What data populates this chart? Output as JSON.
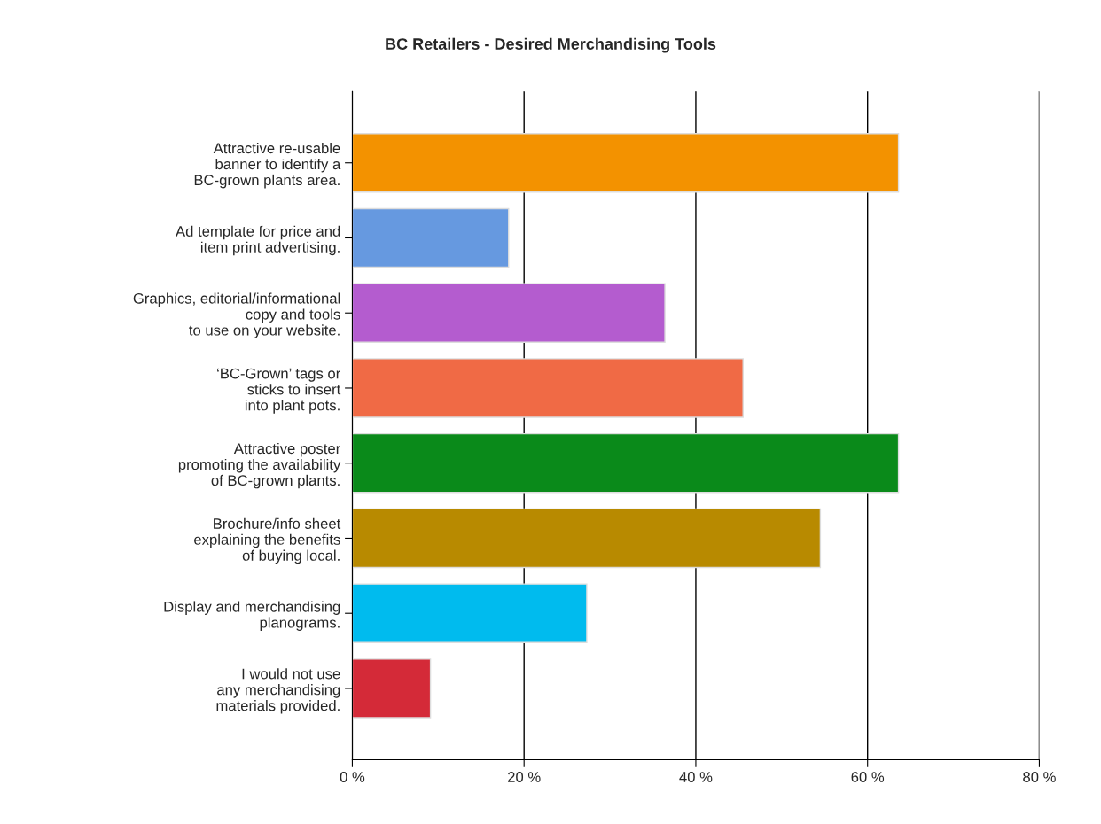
{
  "chart_data": {
    "type": "bar",
    "orientation": "horizontal",
    "title": "BC Retailers - Desired Merchandising Tools",
    "categories": [
      "Attractive re-usable\nbanner to identify a\nBC-grown plants area.",
      "Ad template for price and\nitem print advertising.",
      "Graphics, editorial/informational\ncopy and tools\nto use on your website.",
      "‘BC-Grown’ tags or\nsticks to insert\ninto plant pots.",
      "Attractive poster\npromoting the availability\nof BC-grown plants.",
      "Brochure/info sheet\nexplaining the benefits\nof buying local.",
      "Display and merchandising\nplanograms.",
      "I would not use\nany merchandising\nmaterials provided."
    ],
    "values": [
      63.6,
      18.2,
      36.4,
      45.5,
      63.6,
      54.5,
      27.3,
      9.1
    ],
    "colors": [
      "#f39200",
      "#6699e0",
      "#b45ccf",
      "#f06a45",
      "#0a8a1a",
      "#b88a00",
      "#00bbee",
      "#d42a38"
    ],
    "xlim": [
      0,
      80
    ],
    "xticks": [
      {
        "value": 0,
        "label": "0 %"
      },
      {
        "value": 20,
        "label": "20 %"
      },
      {
        "value": 40,
        "label": "40 %"
      },
      {
        "value": 60,
        "label": "60 %"
      },
      {
        "value": 80,
        "label": "80 %"
      }
    ],
    "grid": "x",
    "legend": false
  }
}
